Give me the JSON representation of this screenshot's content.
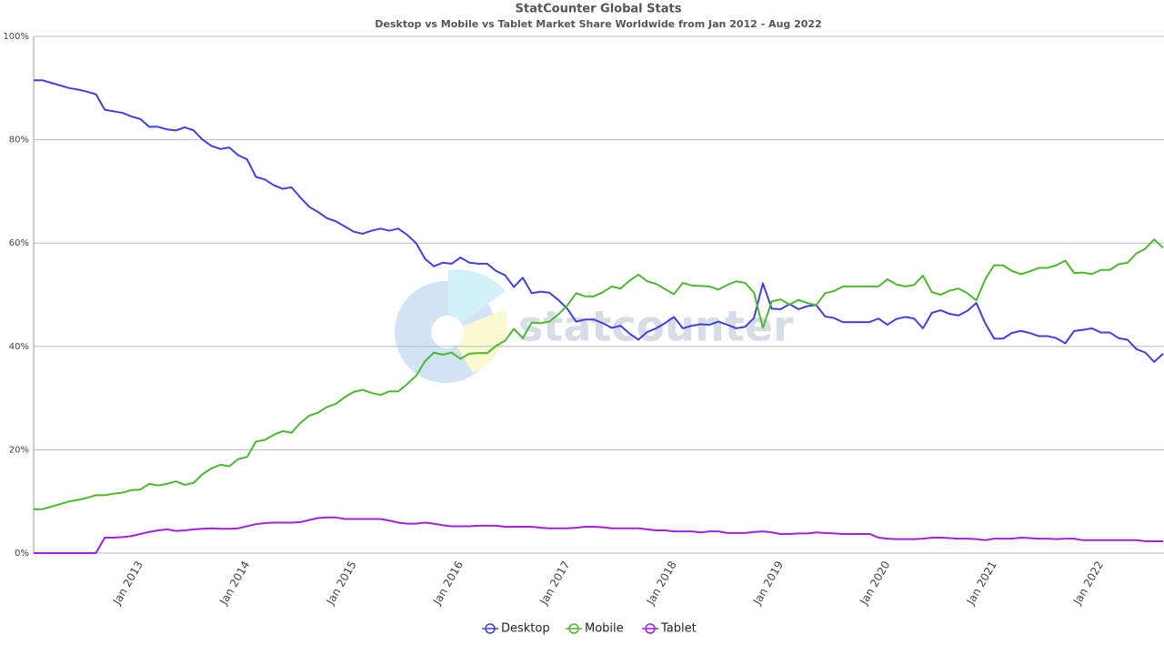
{
  "chart_data": {
    "type": "line",
    "title": "StatCounter Global Stats",
    "subtitle": "Desktop vs Mobile vs Tablet Market Share Worldwide from Jan 2012 - Aug 2022",
    "watermark": "statcounter",
    "categories": [
      null,
      null,
      null,
      null,
      null,
      null,
      null,
      null,
      null,
      null,
      null,
      null,
      "Jan 2013",
      null,
      null,
      null,
      null,
      null,
      null,
      null,
      null,
      null,
      null,
      null,
      "Jan 2014",
      null,
      null,
      null,
      null,
      null,
      null,
      null,
      null,
      null,
      null,
      null,
      "Jan 2015",
      null,
      null,
      null,
      null,
      null,
      null,
      null,
      null,
      null,
      null,
      null,
      "Jan 2016",
      null,
      null,
      null,
      null,
      null,
      null,
      null,
      null,
      null,
      null,
      null,
      "Jan 2017",
      null,
      null,
      null,
      null,
      null,
      null,
      null,
      null,
      null,
      null,
      null,
      "Jan 2018",
      null,
      null,
      null,
      null,
      null,
      null,
      null,
      null,
      null,
      null,
      null,
      "Jan 2019",
      null,
      null,
      null,
      null,
      null,
      null,
      null,
      null,
      null,
      null,
      null,
      "Jan 2020",
      null,
      null,
      null,
      null,
      null,
      null,
      null,
      null,
      null,
      null,
      null,
      "Jan 2021",
      null,
      null,
      null,
      null,
      null,
      null,
      null,
      null,
      null,
      null,
      null,
      "Jan 2022",
      null,
      null,
      null,
      null,
      null,
      null,
      null
    ],
    "series": [
      {
        "name": "Desktop",
        "color": "#4040e0",
        "values": [
          91.5,
          91.5,
          91,
          90.5,
          90,
          89.7,
          89.3,
          88.8,
          85.8,
          85.5,
          85.2,
          84.5,
          84,
          82.5,
          82.5,
          82,
          81.8,
          82.4,
          81.8,
          80,
          78.8,
          78.2,
          78.5,
          77,
          76.2,
          72.8,
          72.3,
          71.2,
          70.5,
          70.8,
          68.8,
          67,
          66,
          64.8,
          64.2,
          63.2,
          62.2,
          61.8,
          62.4,
          62.8,
          62.4,
          62.8,
          61.6,
          60,
          57,
          55.5,
          56.2,
          56,
          57.2,
          56.2,
          56,
          56,
          54.6,
          53.8,
          51.5,
          53.3,
          50.3,
          50.6,
          50.4,
          49,
          47.3,
          44.8,
          45.2,
          45.2,
          44.5,
          43.6,
          44,
          42.5,
          41.3,
          42.8,
          43.5,
          44.5,
          45.7,
          43.5,
          44,
          44.3,
          44.2,
          44.8,
          44.2,
          43.5,
          43.8,
          45.5,
          52.2,
          47.3,
          47.2,
          48.2,
          47.2,
          47.8,
          48,
          45.8,
          45.5,
          44.7,
          44.7,
          44.7,
          44.7,
          45.4,
          44.2,
          45.3,
          45.7,
          45.4,
          43.5,
          46.5,
          47,
          46.3,
          46,
          46.9,
          48.4,
          44.5,
          41.5,
          41.5,
          42.6,
          43,
          42.6,
          42,
          42,
          41.6,
          40.6,
          43,
          43.2,
          43.5,
          42.7,
          42.7,
          41.6,
          41.3,
          39.5,
          38.8,
          37,
          38.6
        ]
      },
      {
        "name": "Mobile",
        "color": "#4cb830",
        "values": [
          8.5,
          8.5,
          9,
          9.5,
          10,
          10.3,
          10.7,
          11.2,
          11.2,
          11.5,
          11.7,
          12.2,
          12.3,
          13.4,
          13.1,
          13.4,
          13.9,
          13.2,
          13.6,
          15.3,
          16.4,
          17.1,
          16.8,
          18.2,
          18.6,
          21.6,
          21.9,
          22.9,
          23.6,
          23.3,
          25.2,
          26.6,
          27.2,
          28.3,
          28.9,
          30.2,
          31.2,
          31.6,
          31,
          30.6,
          31.3,
          31.3,
          32.7,
          34.3,
          37.1,
          38.8,
          38.4,
          38.8,
          37.6,
          38.6,
          38.7,
          38.7,
          40.1,
          41.1,
          43.4,
          41.6,
          44.6,
          44.5,
          44.8,
          46.2,
          47.9,
          50.3,
          49.7,
          49.7,
          50.5,
          51.6,
          51.2,
          52.7,
          53.9,
          52.6,
          52.1,
          51.1,
          50.1,
          52.3,
          51.8,
          51.7,
          51.6,
          51,
          51.9,
          52.6,
          52.3,
          50.4,
          43.6,
          48.7,
          49.1,
          48.1,
          49,
          48.4,
          48,
          50.3,
          50.7,
          51.6,
          51.6,
          51.6,
          51.6,
          51.6,
          53,
          52,
          51.6,
          51.9,
          53.7,
          50.5,
          50,
          50.8,
          51.2,
          50.3,
          48.9,
          53,
          55.7,
          55.7,
          54.6,
          54,
          54.5,
          55.2,
          55.2,
          55.7,
          56.6,
          54.2,
          54.3,
          54,
          54.8,
          54.8,
          55.9,
          56.2,
          58,
          58.9,
          60.7,
          59.1
        ]
      },
      {
        "name": "Tablet",
        "color": "#a020e0",
        "values": [
          0,
          0,
          0,
          0,
          0,
          0,
          0,
          0,
          3,
          3,
          3.1,
          3.3,
          3.7,
          4.1,
          4.4,
          4.6,
          4.3,
          4.4,
          4.6,
          4.7,
          4.8,
          4.7,
          4.7,
          4.8,
          5.2,
          5.6,
          5.8,
          5.9,
          5.9,
          5.9,
          6,
          6.4,
          6.8,
          6.9,
          6.9,
          6.6,
          6.6,
          6.6,
          6.6,
          6.6,
          6.3,
          5.9,
          5.7,
          5.7,
          5.9,
          5.7,
          5.4,
          5.2,
          5.2,
          5.2,
          5.3,
          5.3,
          5.3,
          5.1,
          5.1,
          5.1,
          5.1,
          4.9,
          4.8,
          4.8,
          4.8,
          4.9,
          5.1,
          5.1,
          5,
          4.8,
          4.8,
          4.8,
          4.8,
          4.6,
          4.4,
          4.4,
          4.2,
          4.2,
          4.2,
          4,
          4.2,
          4.2,
          3.9,
          3.9,
          3.9,
          4.1,
          4.2,
          4,
          3.7,
          3.7,
          3.8,
          3.8,
          4,
          3.9,
          3.8,
          3.7,
          3.7,
          3.7,
          3.7,
          3,
          2.8,
          2.7,
          2.7,
          2.7,
          2.8,
          3,
          3,
          2.9,
          2.8,
          2.8,
          2.7,
          2.5,
          2.8,
          2.8,
          2.8,
          3,
          2.9,
          2.8,
          2.8,
          2.7,
          2.8,
          2.8,
          2.5,
          2.5,
          2.5,
          2.5,
          2.5,
          2.5,
          2.5,
          2.3,
          2.3,
          2.3
        ]
      }
    ],
    "ylim": [
      0,
      100
    ],
    "yticks": [
      {
        "value": 0,
        "label": "0%"
      },
      {
        "value": 20,
        "label": "20%"
      },
      {
        "value": 40,
        "label": "40%"
      },
      {
        "value": 60,
        "label": "60%"
      },
      {
        "value": 80,
        "label": "80%"
      },
      {
        "value": 100,
        "label": "100%"
      }
    ],
    "grid": true,
    "legend": "bottom"
  }
}
